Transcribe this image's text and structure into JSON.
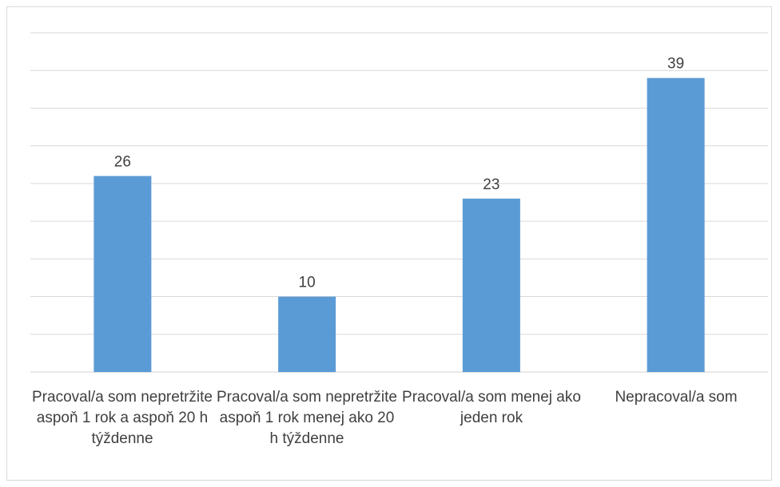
{
  "chart_data": {
    "type": "bar",
    "categories": [
      "Pracoval/a som nepretržite aspoň 1 rok a aspoň 20 h týždenne",
      "Pracoval/a som nepretržite aspoň 1 rok menej ako 20 h týždenne",
      "Pracoval/a som menej ako jeden rok",
      "Nepracoval/a som"
    ],
    "values": [
      26,
      10,
      23,
      39
    ],
    "data_labels": [
      "26",
      "10",
      "23",
      "39"
    ],
    "ylim": [
      0,
      45
    ],
    "grid": true,
    "bar_color": "#5b9bd5",
    "grid_color": "#d9d9d9",
    "legend": "none"
  }
}
